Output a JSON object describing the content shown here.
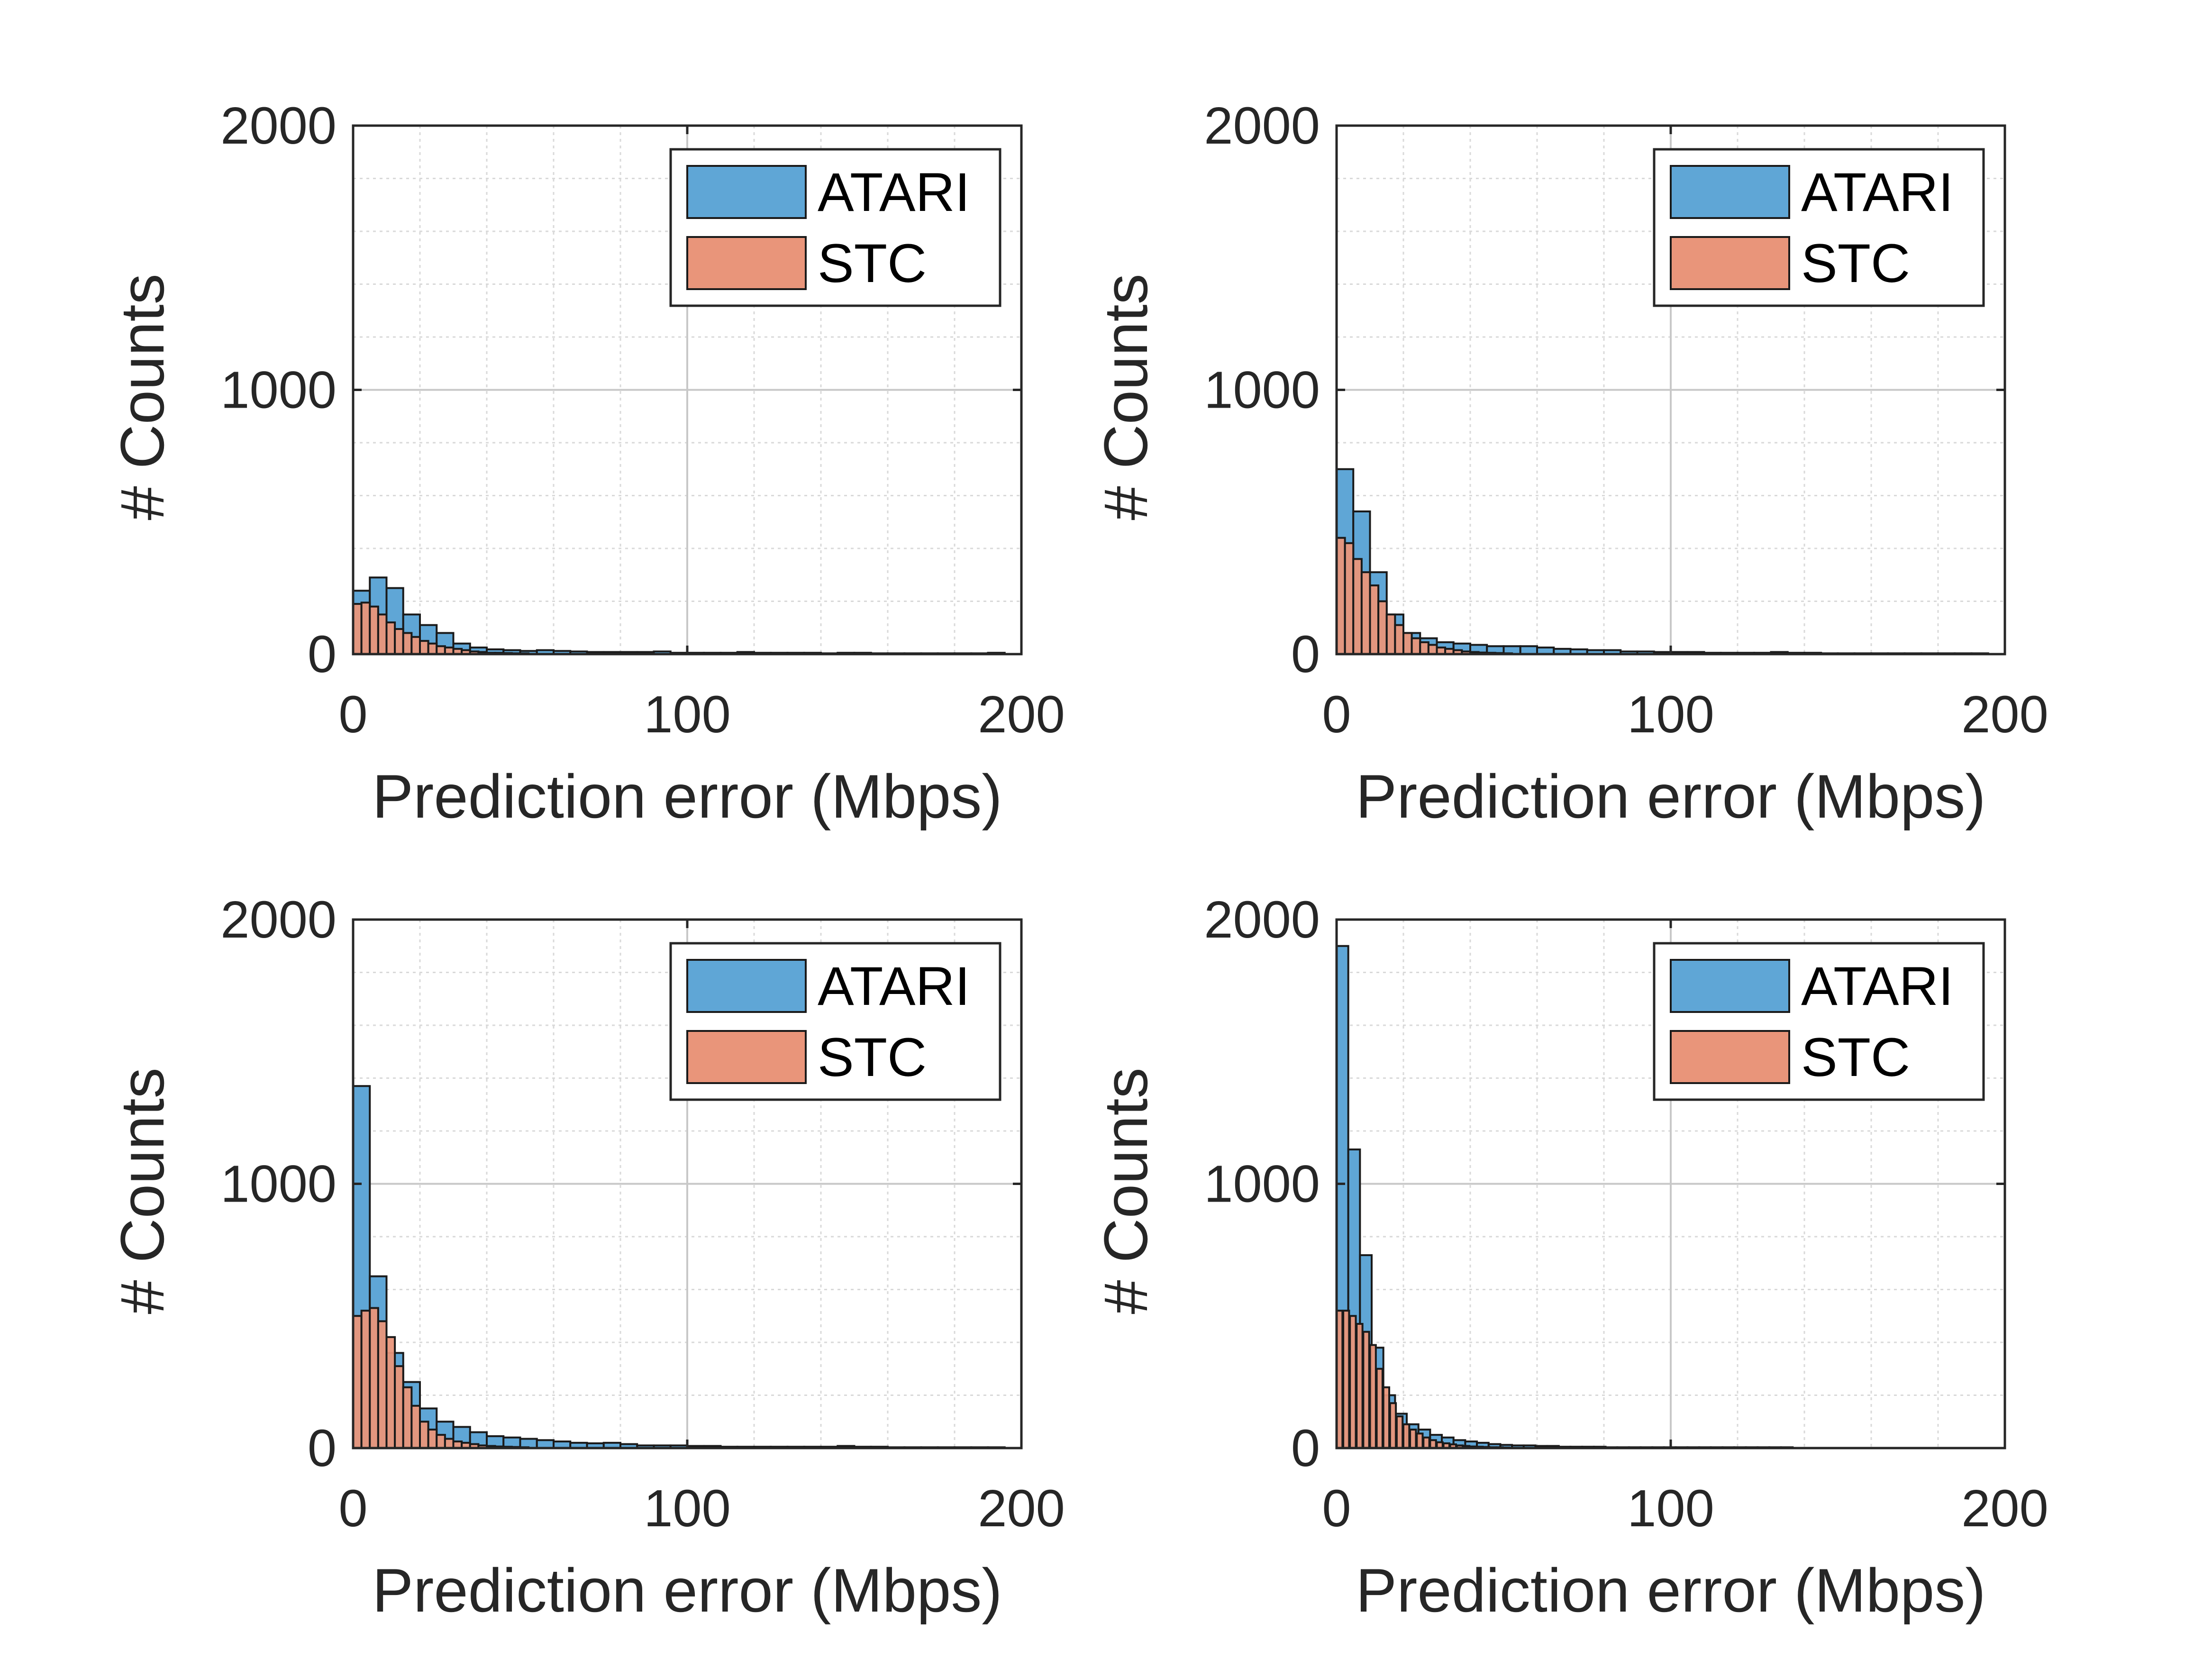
{
  "chart_data": [
    {
      "type": "bar",
      "xlabel": "Prediction error (Mbps)",
      "ylabel": "# Counts",
      "xlim": [
        0,
        200
      ],
      "ylim": [
        0,
        2000
      ],
      "xticks": [
        0,
        100,
        200
      ],
      "yticks": [
        0,
        1000,
        2000
      ],
      "grid": true,
      "minor_grid": true,
      "legend_position": "top-right",
      "bin_width": 5,
      "series": [
        {
          "name": "ATARI",
          "bins": [
            [
              0,
              240
            ],
            [
              5,
              290
            ],
            [
              10,
              250
            ],
            [
              15,
              150
            ],
            [
              20,
              110
            ],
            [
              25,
              80
            ],
            [
              30,
              40
            ],
            [
              35,
              25
            ],
            [
              40,
              18
            ],
            [
              45,
              15
            ],
            [
              50,
              12
            ],
            [
              55,
              15
            ],
            [
              60,
              12
            ],
            [
              65,
              10
            ],
            [
              70,
              8
            ],
            [
              75,
              8
            ],
            [
              80,
              8
            ],
            [
              85,
              8
            ],
            [
              90,
              10
            ],
            [
              95,
              5
            ],
            [
              100,
              5
            ],
            [
              105,
              5
            ],
            [
              110,
              5
            ],
            [
              115,
              8
            ],
            [
              120,
              5
            ],
            [
              125,
              5
            ],
            [
              130,
              5
            ],
            [
              135,
              5
            ],
            [
              140,
              3
            ],
            [
              145,
              5
            ],
            [
              150,
              5
            ],
            [
              155,
              3
            ],
            [
              160,
              3
            ],
            [
              165,
              3
            ],
            [
              170,
              3
            ],
            [
              175,
              3
            ],
            [
              180,
              3
            ],
            [
              185,
              3
            ],
            [
              190,
              5
            ]
          ]
        },
        {
          "name": "STC",
          "bins": [
            [
              0,
              190
            ],
            [
              2.5,
              195
            ],
            [
              5,
              180
            ],
            [
              7.5,
              150
            ],
            [
              10,
              120
            ],
            [
              12.5,
              95
            ],
            [
              15,
              80
            ],
            [
              17.5,
              65
            ],
            [
              20,
              50
            ],
            [
              22.5,
              40
            ],
            [
              25,
              30
            ],
            [
              27.5,
              25
            ],
            [
              30,
              20
            ],
            [
              32.5,
              15
            ],
            [
              35,
              10
            ],
            [
              37.5,
              8
            ],
            [
              40,
              5
            ],
            [
              42.5,
              5
            ],
            [
              45,
              4
            ],
            [
              47.5,
              3
            ],
            [
              50,
              3
            ]
          ]
        }
      ]
    },
    {
      "type": "bar",
      "xlabel": "Prediction error (Mbps)",
      "ylabel": "# Counts",
      "xlim": [
        0,
        200
      ],
      "ylim": [
        0,
        2000
      ],
      "xticks": [
        0,
        100,
        200
      ],
      "yticks": [
        0,
        1000,
        2000
      ],
      "grid": true,
      "minor_grid": true,
      "legend_position": "top-right",
      "bin_width": 5,
      "series": [
        {
          "name": "ATARI",
          "bins": [
            [
              0,
              700
            ],
            [
              5,
              540
            ],
            [
              10,
              310
            ],
            [
              15,
              150
            ],
            [
              20,
              80
            ],
            [
              25,
              60
            ],
            [
              30,
              45
            ],
            [
              35,
              40
            ],
            [
              40,
              35
            ],
            [
              45,
              30
            ],
            [
              50,
              30
            ],
            [
              55,
              30
            ],
            [
              60,
              25
            ],
            [
              65,
              20
            ],
            [
              70,
              18
            ],
            [
              75,
              15
            ],
            [
              80,
              15
            ],
            [
              85,
              10
            ],
            [
              90,
              10
            ],
            [
              95,
              8
            ],
            [
              100,
              8
            ],
            [
              105,
              8
            ],
            [
              110,
              5
            ],
            [
              115,
              5
            ],
            [
              120,
              5
            ],
            [
              125,
              5
            ],
            [
              130,
              8
            ],
            [
              135,
              5
            ],
            [
              140,
              5
            ],
            [
              145,
              3
            ],
            [
              150,
              3
            ],
            [
              155,
              3
            ],
            [
              160,
              3
            ],
            [
              165,
              3
            ],
            [
              170,
              3
            ],
            [
              175,
              3
            ],
            [
              180,
              3
            ],
            [
              185,
              3
            ],
            [
              190,
              3
            ]
          ]
        },
        {
          "name": "STC",
          "bins": [
            [
              0,
              440
            ],
            [
              2.5,
              420
            ],
            [
              5,
              360
            ],
            [
              7.5,
              310
            ],
            [
              10,
              260
            ],
            [
              12.5,
              200
            ],
            [
              15,
              150
            ],
            [
              17.5,
              110
            ],
            [
              20,
              80
            ],
            [
              22.5,
              60
            ],
            [
              25,
              45
            ],
            [
              27.5,
              35
            ],
            [
              30,
              25
            ],
            [
              32.5,
              20
            ],
            [
              35,
              15
            ],
            [
              37.5,
              10
            ],
            [
              40,
              8
            ],
            [
              42.5,
              6
            ],
            [
              45,
              5
            ],
            [
              47.5,
              4
            ],
            [
              50,
              3
            ]
          ]
        }
      ]
    },
    {
      "type": "bar",
      "xlabel": "Prediction error (Mbps)",
      "ylabel": "# Counts",
      "xlim": [
        0,
        200
      ],
      "ylim": [
        0,
        2000
      ],
      "xticks": [
        0,
        100,
        200
      ],
      "yticks": [
        0,
        1000,
        2000
      ],
      "grid": true,
      "minor_grid": true,
      "legend_position": "top-right",
      "bin_width": 5,
      "series": [
        {
          "name": "ATARI",
          "bins": [
            [
              0,
              1370
            ],
            [
              5,
              650
            ],
            [
              10,
              360
            ],
            [
              15,
              250
            ],
            [
              20,
              150
            ],
            [
              25,
              100
            ],
            [
              30,
              80
            ],
            [
              35,
              60
            ],
            [
              40,
              45
            ],
            [
              45,
              40
            ],
            [
              50,
              35
            ],
            [
              55,
              30
            ],
            [
              60,
              25
            ],
            [
              65,
              20
            ],
            [
              70,
              18
            ],
            [
              75,
              20
            ],
            [
              80,
              15
            ],
            [
              85,
              10
            ],
            [
              90,
              10
            ],
            [
              95,
              10
            ],
            [
              100,
              8
            ],
            [
              105,
              8
            ],
            [
              110,
              5
            ],
            [
              115,
              5
            ],
            [
              120,
              5
            ],
            [
              125,
              5
            ],
            [
              130,
              5
            ],
            [
              135,
              5
            ],
            [
              140,
              5
            ],
            [
              145,
              8
            ],
            [
              150,
              5
            ],
            [
              155,
              5
            ],
            [
              160,
              3
            ],
            [
              165,
              3
            ],
            [
              170,
              3
            ],
            [
              175,
              3
            ],
            [
              180,
              3
            ],
            [
              185,
              3
            ],
            [
              190,
              3
            ]
          ]
        },
        {
          "name": "STC",
          "bins": [
            [
              0,
              500
            ],
            [
              2.5,
              520
            ],
            [
              5,
              530
            ],
            [
              7.5,
              480
            ],
            [
              10,
              420
            ],
            [
              12.5,
              310
            ],
            [
              15,
              230
            ],
            [
              17.5,
              160
            ],
            [
              20,
              100
            ],
            [
              22.5,
              70
            ],
            [
              25,
              50
            ],
            [
              27.5,
              35
            ],
            [
              30,
              25
            ],
            [
              32.5,
              20
            ],
            [
              35,
              15
            ],
            [
              37.5,
              10
            ],
            [
              40,
              8
            ],
            [
              42.5,
              6
            ],
            [
              45,
              5
            ],
            [
              47.5,
              4
            ],
            [
              50,
              3
            ]
          ]
        }
      ]
    },
    {
      "type": "bar",
      "xlabel": "Prediction error (Mbps)",
      "ylabel": "# Counts",
      "xlim": [
        0,
        200
      ],
      "ylim": [
        0,
        2000
      ],
      "xticks": [
        0,
        100,
        200
      ],
      "yticks": [
        0,
        1000,
        2000
      ],
      "grid": true,
      "minor_grid": true,
      "legend_position": "top-right",
      "bin_width": 3.5,
      "series": [
        {
          "name": "ATARI",
          "bins": [
            [
              0,
              1900
            ],
            [
              3.5,
              1130
            ],
            [
              7,
              730
            ],
            [
              10.5,
              380
            ],
            [
              14,
              200
            ],
            [
              17.5,
              130
            ],
            [
              21,
              90
            ],
            [
              24.5,
              70
            ],
            [
              28,
              50
            ],
            [
              31.5,
              40
            ],
            [
              35,
              30
            ],
            [
              38.5,
              25
            ],
            [
              42,
              20
            ],
            [
              45.5,
              15
            ],
            [
              49,
              12
            ],
            [
              52.5,
              10
            ],
            [
              56,
              10
            ],
            [
              59.5,
              8
            ],
            [
              63,
              8
            ],
            [
              66.5,
              5
            ],
            [
              70,
              5
            ],
            [
              73.5,
              5
            ],
            [
              77,
              5
            ],
            [
              80.5,
              3
            ],
            [
              84,
              3
            ],
            [
              87.5,
              3
            ],
            [
              91,
              3
            ],
            [
              94.5,
              3
            ],
            [
              98,
              3
            ],
            [
              101.5,
              3
            ],
            [
              105,
              3
            ],
            [
              108.5,
              3
            ],
            [
              112,
              3
            ],
            [
              115.5,
              3
            ],
            [
              119,
              3
            ],
            [
              122.5,
              3
            ],
            [
              126,
              3
            ],
            [
              129.5,
              3
            ],
            [
              133,
              3
            ]
          ]
        },
        {
          "name": "STC",
          "bins": [
            [
              0,
              520
            ],
            [
              2,
              520
            ],
            [
              4,
              500
            ],
            [
              6,
              470
            ],
            [
              8,
              440
            ],
            [
              10,
              390
            ],
            [
              12,
              300
            ],
            [
              14,
              230
            ],
            [
              16,
              170
            ],
            [
              18,
              120
            ],
            [
              20,
              90
            ],
            [
              22,
              70
            ],
            [
              24,
              55
            ],
            [
              26,
              40
            ],
            [
              28,
              30
            ],
            [
              30,
              22
            ],
            [
              32,
              18
            ],
            [
              34,
              14
            ],
            [
              36,
              10
            ],
            [
              38,
              8
            ],
            [
              40,
              6
            ],
            [
              42,
              5
            ],
            [
              44,
              4
            ],
            [
              46,
              3
            ],
            [
              48,
              3
            ],
            [
              50,
              2
            ]
          ]
        }
      ]
    }
  ],
  "colors": {
    "atari_fill": "#5fa6d6",
    "stc_fill": "#e9957a",
    "bar_edge": "#1a1a1a",
    "axis": "#262626",
    "grid": "#d9d9d9"
  }
}
